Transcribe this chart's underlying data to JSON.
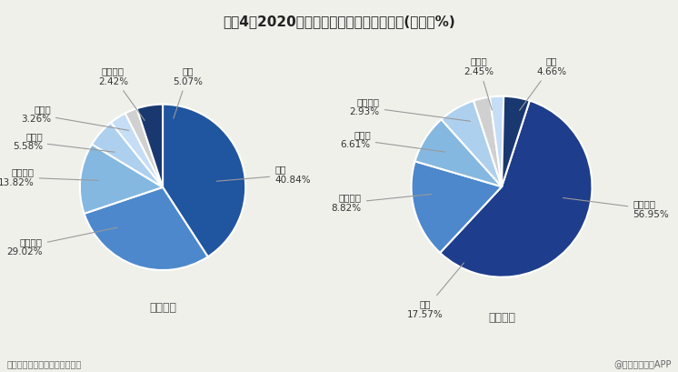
{
  "title": "图表4：2020年中国零售电商行业市场份额(单位：%)",
  "subtitle_left": "按照市值",
  "subtitle_right": "按照资产",
  "footer_left": "资料来源：前瞻产业研究院整理",
  "footer_right": "@前瞻经济学人APP",
  "chart1": {
    "labels": [
      "京东",
      "阿里巴巴",
      "苏宁易购",
      "唯品会",
      "拼多多",
      "国美零售",
      "其他"
    ],
    "values": [
      40.84,
      29.02,
      13.82,
      5.58,
      3.26,
      2.42,
      5.07
    ],
    "colors": [
      "#2055a0",
      "#4d88cc",
      "#85b8e0",
      "#aed0ef",
      "#c5ddf5",
      "#d0d0d0",
      "#1a3870"
    ],
    "startangle": 90
  },
  "chart2": {
    "labels": [
      "阿里巴巴",
      "京东",
      "苏宁易购",
      "拼多多",
      "国美零售",
      "唯品会",
      "其他"
    ],
    "values": [
      56.95,
      17.57,
      8.82,
      6.61,
      2.93,
      2.45,
      4.66
    ],
    "colors": [
      "#1e3d8c",
      "#4d88cc",
      "#85b8e0",
      "#aed0ef",
      "#d0d0d0",
      "#c5ddf5",
      "#1a3870"
    ],
    "startangle": 90
  },
  "bg_color": "#f0f0eb"
}
